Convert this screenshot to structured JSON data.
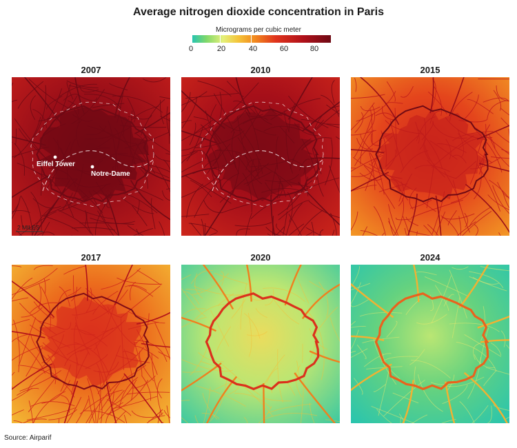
{
  "title": "Average nitrogen dioxide concentration in Paris",
  "legend": {
    "title": "Micrograms per cubic meter",
    "ticks": [
      "0",
      "20",
      "40",
      "60",
      "80"
    ]
  },
  "panels": [
    {
      "year": "2007",
      "level": 0.92
    },
    {
      "year": "2010",
      "level": 0.88
    },
    {
      "year": "2015",
      "level": 0.62
    },
    {
      "year": "2017",
      "level": 0.55
    },
    {
      "year": "2020",
      "level": 0.22
    },
    {
      "year": "2024",
      "level": 0.12
    }
  ],
  "annotations": {
    "eiffel": "Eiffel Tower",
    "notre_dame": "Notre-Dame",
    "scale": "2 MILES"
  },
  "source": "Source: Airparif"
}
